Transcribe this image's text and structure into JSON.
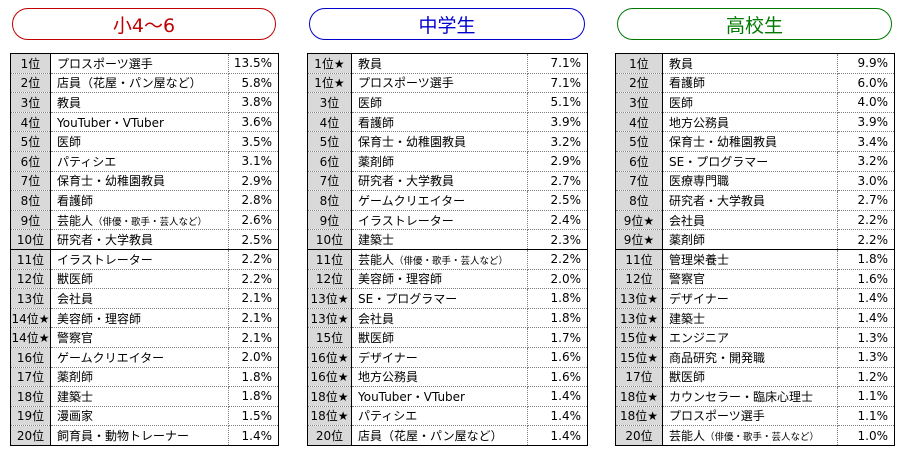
{
  "colors": {
    "elementary": "#c00000",
    "junior_high": "#0000cc",
    "high_school": "#007a00",
    "rank_bg": "#d9d9d9"
  },
  "columns": [
    {
      "title": "小4～6",
      "rows": [
        {
          "rank": "1位",
          "job": "プロスポーツ選手",
          "pct": "13.5%"
        },
        {
          "rank": "2位",
          "job": "店員（花屋・パン屋など）",
          "pct": "5.8%"
        },
        {
          "rank": "3位",
          "job": "教員",
          "pct": "3.8%"
        },
        {
          "rank": "4位",
          "job": "YouTuber・VTuber",
          "pct": "3.6%"
        },
        {
          "rank": "5位",
          "job": "医師",
          "pct": "3.5%"
        },
        {
          "rank": "6位",
          "job": "パティシエ",
          "pct": "3.1%"
        },
        {
          "rank": "7位",
          "job": "保育士・幼稚園教員",
          "pct": "2.9%"
        },
        {
          "rank": "8位",
          "job": "看護師",
          "pct": "2.8%"
        },
        {
          "rank": "9位",
          "job": "芸能人",
          "job_sub": "（俳優・歌手・芸人など）",
          "pct": "2.6%"
        },
        {
          "rank": "10位",
          "job": "研究者・大学教員",
          "pct": "2.5%"
        },
        {
          "rank": "11位",
          "job": "イラストレーター",
          "pct": "2.2%"
        },
        {
          "rank": "12位",
          "job": "獣医師",
          "pct": "2.2%"
        },
        {
          "rank": "13位",
          "job": "会社員",
          "pct": "2.1%"
        },
        {
          "rank": "14位★",
          "job": "美容師・理容師",
          "pct": "2.1%"
        },
        {
          "rank": "14位★",
          "job": "警察官",
          "pct": "2.1%"
        },
        {
          "rank": "16位",
          "job": "ゲームクリエイター",
          "pct": "2.0%"
        },
        {
          "rank": "17位",
          "job": "薬剤師",
          "pct": "1.8%"
        },
        {
          "rank": "18位",
          "job": "建築士",
          "pct": "1.8%"
        },
        {
          "rank": "19位",
          "job": "漫画家",
          "pct": "1.5%"
        },
        {
          "rank": "20位",
          "job": "飼育員・動物トレーナー",
          "pct": "1.4%"
        }
      ]
    },
    {
      "title": "中学生",
      "rows": [
        {
          "rank": "1位★",
          "job": "教員",
          "pct": "7.1%"
        },
        {
          "rank": "1位★",
          "job": "プロスポーツ選手",
          "pct": "7.1%"
        },
        {
          "rank": "3位",
          "job": "医師",
          "pct": "5.1%"
        },
        {
          "rank": "4位",
          "job": "看護師",
          "pct": "3.9%"
        },
        {
          "rank": "5位",
          "job": "保育士・幼稚園教員",
          "pct": "3.2%"
        },
        {
          "rank": "6位",
          "job": "薬剤師",
          "pct": "2.9%"
        },
        {
          "rank": "7位",
          "job": "研究者・大学教員",
          "pct": "2.7%"
        },
        {
          "rank": "8位",
          "job": "ゲームクリエイター",
          "pct": "2.5%"
        },
        {
          "rank": "9位",
          "job": "イラストレーター",
          "pct": "2.4%"
        },
        {
          "rank": "10位",
          "job": "建築士",
          "pct": "2.3%"
        },
        {
          "rank": "11位",
          "job": "芸能人",
          "job_sub": "（俳優・歌手・芸人など）",
          "pct": "2.2%"
        },
        {
          "rank": "12位",
          "job": "美容師・理容師",
          "pct": "2.0%"
        },
        {
          "rank": "13位★",
          "job": "SE・プログラマー",
          "pct": "1.8%"
        },
        {
          "rank": "13位★",
          "job": "会社員",
          "pct": "1.8%"
        },
        {
          "rank": "15位",
          "job": "獣医師",
          "pct": "1.7%"
        },
        {
          "rank": "16位★",
          "job": "デザイナー",
          "pct": "1.6%"
        },
        {
          "rank": "16位★",
          "job": "地方公務員",
          "pct": "1.6%"
        },
        {
          "rank": "18位★",
          "job": "YouTuber・VTuber",
          "pct": "1.4%"
        },
        {
          "rank": "18位★",
          "job": "パティシエ",
          "pct": "1.4%"
        },
        {
          "rank": "20位",
          "job": "店員（花屋・パン屋など）",
          "pct": "1.4%"
        }
      ]
    },
    {
      "title": "高校生",
      "rows": [
        {
          "rank": "1位",
          "job": "教員",
          "pct": "9.9%"
        },
        {
          "rank": "2位",
          "job": "看護師",
          "pct": "6.0%"
        },
        {
          "rank": "3位",
          "job": "医師",
          "pct": "4.0%"
        },
        {
          "rank": "4位",
          "job": "地方公務員",
          "pct": "3.9%"
        },
        {
          "rank": "5位",
          "job": "保育士・幼稚園教員",
          "pct": "3.4%"
        },
        {
          "rank": "6位",
          "job": "SE・プログラマー",
          "pct": "3.2%"
        },
        {
          "rank": "7位",
          "job": "医療専門職",
          "pct": "3.0%"
        },
        {
          "rank": "8位",
          "job": "研究者・大学教員",
          "pct": "2.7%"
        },
        {
          "rank": "9位★",
          "job": "会社員",
          "pct": "2.2%"
        },
        {
          "rank": "9位★",
          "job": "薬剤師",
          "pct": "2.2%"
        },
        {
          "rank": "11位",
          "job": "管理栄養士",
          "pct": "1.8%"
        },
        {
          "rank": "12位",
          "job": "警察官",
          "pct": "1.6%"
        },
        {
          "rank": "13位★",
          "job": "デザイナー",
          "pct": "1.4%"
        },
        {
          "rank": "13位★",
          "job": "建築士",
          "pct": "1.4%"
        },
        {
          "rank": "15位★",
          "job": "エンジニア",
          "pct": "1.3%"
        },
        {
          "rank": "15位★",
          "job": "商品研究・開発職",
          "pct": "1.3%"
        },
        {
          "rank": "17位",
          "job": "獣医師",
          "pct": "1.2%"
        },
        {
          "rank": "18位★",
          "job": "カウンセラー・臨床心理士",
          "pct": "1.1%"
        },
        {
          "rank": "18位★",
          "job": "プロスポーツ選手",
          "pct": "1.1%"
        },
        {
          "rank": "20位",
          "job": "芸能人",
          "job_sub": "（俳優・歌手・芸人など）",
          "pct": "1.0%"
        }
      ]
    }
  ]
}
